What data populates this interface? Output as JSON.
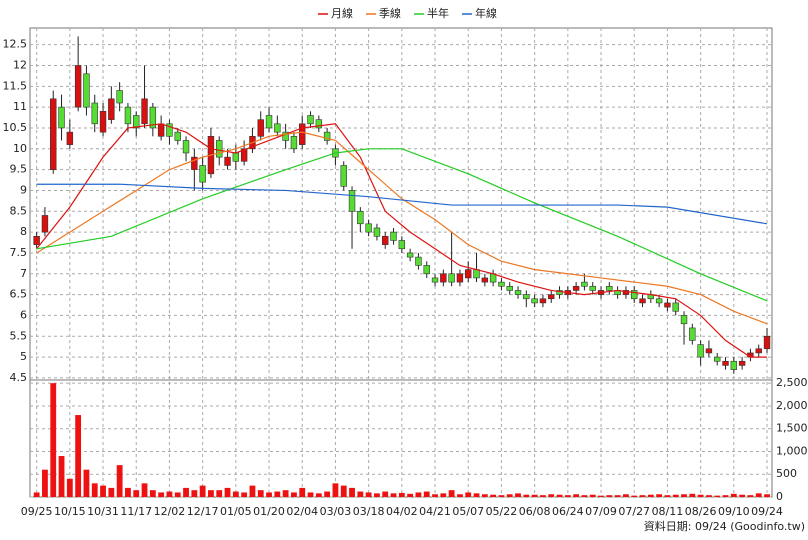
{
  "chart_data": {
    "type": "candlestick",
    "xlim": [
      -0.8,
      88.6
    ],
    "xticks": [
      {
        "value": 0,
        "label": "09/25"
      },
      {
        "value": 4,
        "label": "10/15"
      },
      {
        "value": 8,
        "label": "10/31"
      },
      {
        "value": 12,
        "label": "11/17"
      },
      {
        "value": 16,
        "label": "12/02"
      },
      {
        "value": 20,
        "label": "12/17"
      },
      {
        "value": 24,
        "label": "01/05"
      },
      {
        "value": 28,
        "label": "01/20"
      },
      {
        "value": 32,
        "label": "02/04"
      },
      {
        "value": 36,
        "label": "03/03"
      },
      {
        "value": 40,
        "label": "03/18"
      },
      {
        "value": 44,
        "label": "04/02"
      },
      {
        "value": 48,
        "label": "04/21"
      },
      {
        "value": 52,
        "label": "05/07"
      },
      {
        "value": 56,
        "label": "05/22"
      },
      {
        "value": 60,
        "label": "06/08"
      },
      {
        "value": 64,
        "label": "06/24"
      },
      {
        "value": 68,
        "label": "07/09"
      },
      {
        "value": 72,
        "label": "07/27"
      },
      {
        "value": 76,
        "label": "08/11"
      },
      {
        "value": 80,
        "label": "08/26"
      },
      {
        "value": 84,
        "label": "09/10"
      },
      {
        "value": 88,
        "label": "09/24"
      }
    ],
    "ylim": [
      4.45,
      12.9
    ],
    "yticks": [
      4.5,
      5,
      5.5,
      6,
      6.5,
      7,
      7.5,
      8,
      8.5,
      9,
      9.5,
      10,
      10.5,
      11,
      11.5,
      12,
      12.5
    ],
    "grid": true,
    "up_color": "#d81010",
    "down_color": "#55dd33",
    "candles": {
      "open": [
        7.7,
        8.0,
        9.5,
        11.0,
        10.1,
        11.0,
        11.8,
        11.1,
        10.4,
        10.7,
        11.4,
        11.0,
        10.8,
        10.6,
        11.0,
        10.3,
        10.6,
        10.4,
        10.2,
        9.5,
        9.6,
        9.4,
        10.2,
        9.6,
        9.9,
        9.7,
        10.0,
        10.3,
        10.8,
        10.6,
        10.4,
        10.3,
        10.1,
        10.8,
        10.7,
        10.4,
        10.0,
        9.6,
        9.0,
        8.5,
        8.2,
        8.1,
        7.7,
        8.0,
        7.8,
        7.5,
        7.4,
        7.2,
        6.9,
        6.8,
        7.0,
        6.8,
        6.9,
        7.1,
        6.8,
        7.0,
        6.8,
        6.7,
        6.6,
        6.5,
        6.4,
        6.3,
        6.4,
        6.6,
        6.5,
        6.6,
        6.8,
        6.7,
        6.5,
        6.7,
        6.6,
        6.5,
        6.6,
        6.3,
        6.5,
        6.4,
        6.2,
        6.3,
        6.0,
        5.7,
        5.3,
        5.1,
        5.0,
        4.8,
        4.9,
        4.8,
        5.0,
        5.1,
        5.2
      ],
      "high": [
        8.0,
        8.6,
        11.4,
        11.3,
        10.7,
        12.7,
        12.0,
        11.3,
        11.1,
        11.5,
        11.6,
        11.1,
        10.9,
        12.0,
        11.1,
        10.8,
        10.7,
        10.5,
        10.3,
        10.0,
        9.8,
        10.5,
        10.3,
        10.0,
        10.1,
        10.2,
        10.5,
        10.9,
        11.0,
        10.8,
        10.6,
        10.4,
        10.8,
        10.9,
        10.8,
        10.5,
        10.1,
        9.7,
        9.1,
        8.6,
        8.3,
        8.2,
        8.0,
        8.1,
        7.9,
        7.6,
        7.5,
        7.3,
        7.0,
        7.1,
        8.0,
        7.1,
        7.3,
        7.5,
        7.0,
        7.1,
        6.9,
        6.8,
        6.7,
        6.6,
        6.5,
        6.5,
        6.6,
        6.7,
        6.7,
        6.8,
        7.0,
        6.8,
        6.7,
        6.8,
        6.7,
        6.7,
        6.7,
        6.5,
        6.6,
        6.5,
        6.4,
        6.4,
        6.1,
        5.8,
        5.4,
        5.4,
        5.1,
        5.0,
        5.0,
        5.0,
        5.2,
        5.3,
        5.7
      ],
      "low": [
        7.6,
        7.9,
        9.4,
        10.2,
        10.0,
        10.9,
        10.8,
        10.4,
        10.3,
        10.6,
        10.9,
        10.4,
        10.3,
        10.5,
        10.3,
        10.2,
        10.1,
        10.1,
        9.7,
        9.0,
        9.0,
        9.3,
        9.6,
        9.5,
        9.5,
        9.6,
        9.9,
        10.2,
        10.4,
        10.3,
        10.0,
        9.9,
        10.0,
        10.5,
        10.4,
        10.1,
        9.6,
        9.0,
        7.6,
        8.0,
        7.9,
        7.8,
        7.6,
        7.7,
        7.5,
        7.3,
        7.1,
        6.9,
        6.7,
        6.7,
        6.7,
        6.7,
        6.8,
        6.8,
        6.7,
        6.7,
        6.6,
        6.5,
        6.4,
        6.2,
        6.2,
        6.2,
        6.3,
        6.4,
        6.4,
        6.5,
        6.6,
        6.5,
        6.4,
        6.5,
        6.4,
        6.4,
        6.3,
        6.2,
        6.3,
        6.2,
        6.1,
        6.0,
        5.3,
        5.3,
        4.8,
        5.0,
        4.8,
        4.7,
        4.6,
        4.7,
        4.9,
        5.0,
        5.1
      ],
      "close": [
        7.9,
        8.4,
        11.2,
        10.5,
        10.4,
        12.0,
        11.0,
        10.6,
        10.9,
        11.2,
        11.1,
        10.6,
        10.5,
        11.2,
        10.5,
        10.6,
        10.3,
        10.2,
        9.9,
        9.8,
        9.2,
        10.3,
        9.8,
        9.8,
        9.7,
        10.0,
        10.3,
        10.7,
        10.5,
        10.4,
        10.2,
        10.0,
        10.6,
        10.6,
        10.5,
        10.2,
        9.8,
        9.1,
        8.5,
        8.2,
        8.0,
        7.9,
        7.9,
        7.8,
        7.6,
        7.4,
        7.2,
        7.0,
        6.8,
        7.0,
        6.8,
        7.0,
        7.1,
        6.9,
        6.9,
        6.8,
        6.7,
        6.6,
        6.5,
        6.4,
        6.3,
        6.4,
        6.5,
        6.5,
        6.6,
        6.7,
        6.7,
        6.6,
        6.6,
        6.6,
        6.5,
        6.6,
        6.4,
        6.4,
        6.4,
        6.3,
        6.3,
        6.1,
        5.8,
        5.4,
        5.0,
        5.2,
        4.9,
        4.9,
        4.7,
        4.9,
        5.1,
        5.2,
        5.5
      ]
    },
    "volume": {
      "color": "#ee1111",
      "ylim": [
        0,
        2570
      ],
      "yticks": [
        0,
        500,
        {
          "value": 1000,
          "label": "1,000"
        },
        {
          "value": 1500,
          "label": "1,500"
        },
        {
          "value": 2000,
          "label": "2,000"
        },
        {
          "value": 2500,
          "label": "2,500"
        }
      ],
      "values": [
        100,
        600,
        2500,
        900,
        400,
        1800,
        600,
        300,
        250,
        200,
        700,
        200,
        150,
        300,
        150,
        100,
        120,
        100,
        200,
        150,
        250,
        150,
        150,
        200,
        120,
        100,
        250,
        150,
        100,
        120,
        150,
        100,
        200,
        100,
        80,
        120,
        300,
        250,
        200,
        120,
        100,
        80,
        120,
        80,
        90,
        70,
        100,
        120,
        60,
        80,
        150,
        60,
        100,
        80,
        60,
        50,
        40,
        60,
        80,
        50,
        50,
        40,
        60,
        50,
        40,
        60,
        40,
        50,
        30,
        40,
        40,
        60,
        30,
        40,
        50,
        60,
        40,
        50,
        60,
        70,
        50,
        40,
        30,
        40,
        70,
        50,
        40,
        80,
        60
      ]
    },
    "series": [
      {
        "name": "月線",
        "color": "#dd1111",
        "x": [
          0,
          4,
          8,
          11,
          15,
          18,
          21,
          24,
          28,
          32,
          36,
          39,
          42,
          45,
          48,
          51,
          55,
          58,
          62,
          66,
          70,
          74,
          77,
          80,
          83,
          86,
          88
        ],
        "values": [
          7.6,
          8.6,
          9.8,
          10.5,
          10.6,
          10.4,
          10.0,
          9.9,
          10.2,
          10.5,
          10.6,
          9.8,
          8.5,
          8.0,
          7.6,
          7.2,
          7.0,
          6.8,
          6.6,
          6.5,
          6.6,
          6.5,
          6.4,
          6.0,
          5.4,
          5.0,
          5.0
        ]
      },
      {
        "name": "季線",
        "color": "#ee7722",
        "x": [
          0,
          4,
          8,
          12,
          16,
          20,
          24,
          28,
          32,
          36,
          40,
          44,
          48,
          52,
          56,
          60,
          64,
          68,
          72,
          76,
          80,
          84,
          88
        ],
        "values": [
          7.5,
          8.0,
          8.5,
          9.0,
          9.5,
          9.8,
          10.0,
          10.3,
          10.4,
          10.2,
          9.5,
          8.8,
          8.3,
          7.7,
          7.3,
          7.1,
          7.0,
          6.9,
          6.8,
          6.7,
          6.5,
          6.1,
          5.8
        ]
      },
      {
        "name": "半年",
        "color": "#22cc22",
        "x": [
          0,
          9,
          20,
          30,
          36,
          40,
          44,
          52,
          60,
          70,
          80,
          88
        ],
        "values": [
          7.6,
          7.9,
          8.8,
          9.5,
          9.9,
          10.0,
          10.0,
          9.4,
          8.7,
          7.9,
          7.0,
          6.35
        ]
      },
      {
        "name": "年線",
        "color": "#2266cc",
        "x": [
          0,
          10,
          20,
          30,
          40,
          50,
          60,
          70,
          76,
          88
        ],
        "values": [
          9.15,
          9.15,
          9.05,
          9.0,
          8.85,
          8.65,
          8.65,
          8.65,
          8.6,
          8.2
        ]
      }
    ],
    "footnote": "資料日期: 09/24 (Goodinfo.tw)"
  }
}
